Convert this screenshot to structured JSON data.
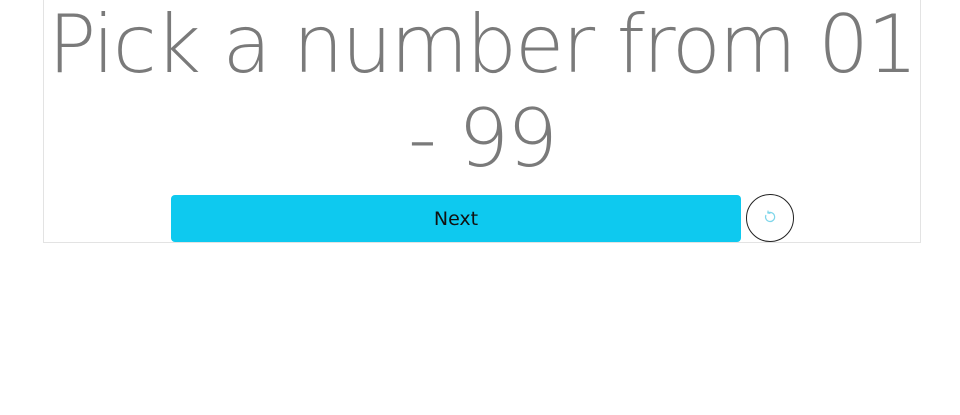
{
  "prompt": {
    "text": "Pick a number from 01 - 99"
  },
  "actions": {
    "next_label": "Next",
    "reset_icon": "reset-icon"
  },
  "colors": {
    "accent": "#0ec9ef",
    "prompt_text": "#7a7a7a",
    "reset_icon": "#7fd6ea"
  }
}
